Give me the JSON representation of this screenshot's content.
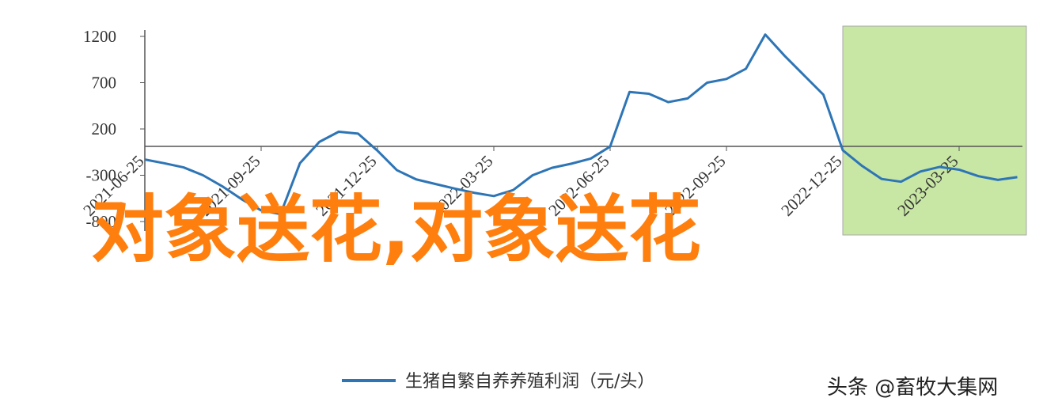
{
  "chart_data": {
    "type": "line",
    "categories": [
      "2021-06-25",
      null,
      null,
      null,
      null,
      null,
      "2021-09-25",
      null,
      null,
      null,
      null,
      null,
      "2021-12-25",
      null,
      null,
      null,
      null,
      null,
      "2022-03-25",
      null,
      null,
      null,
      null,
      null,
      "2022-06-25",
      null,
      null,
      null,
      null,
      null,
      "2022-09-25",
      null,
      null,
      null,
      null,
      null,
      "2022-12-25",
      null,
      null,
      null,
      null,
      null,
      "2023-03-25",
      null,
      null,
      null
    ],
    "series": [
      {
        "name": "生猪自繁自养养殖利润（元/头）",
        "color": "#2e75b6",
        "values": [
          -130,
          -170,
          -215,
          -300,
          -420,
          -560,
          -680,
          -720,
          -170,
          60,
          170,
          150,
          -35,
          -245,
          -345,
          -395,
          -445,
          -490,
          -525,
          -460,
          -300,
          -220,
          -175,
          -120,
          10,
          600,
          580,
          490,
          530,
          700,
          740,
          850,
          1220,
          990,
          780,
          570,
          -30,
          -200,
          -340,
          -370,
          -260,
          -210,
          -240,
          -310,
          -350,
          -320
        ]
      }
    ],
    "ylim": [
      -800,
      1200
    ],
    "yticks": [
      1200,
      700,
      200,
      -300,
      -800
    ],
    "overlay_text": "对象送花,对象送花",
    "watermark": "头条 @畜牧大集网"
  }
}
